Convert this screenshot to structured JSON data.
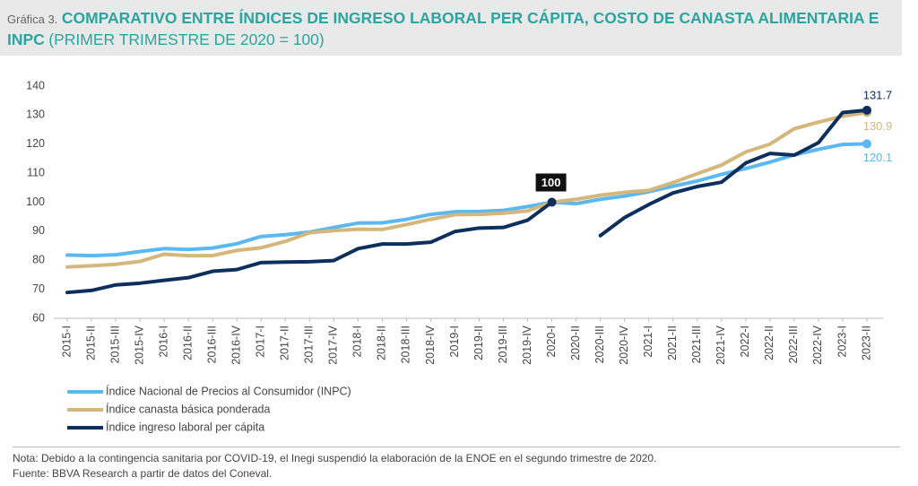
{
  "chart_data": {
    "type": "line",
    "label": "Gráfica 3.",
    "title": "COMPARATIVO ENTRE ÍNDICES DE INGRESO LABORAL PER CÁPITA, COSTO DE CANASTA ALIMENTARIA E INPC",
    "subtitle": "(PRIMER TRIMESTRE DE 2020 = 100)",
    "categories": [
      "2015-I",
      "2015-II",
      "2015-III",
      "2015-IV",
      "2016-I",
      "2016-II",
      "2016-III",
      "2016-IV",
      "2017-I",
      "2017-II",
      "2017-III",
      "2017-IV",
      "2018-I",
      "2018-II",
      "2018-III",
      "2018-IV",
      "2019-I",
      "2019-II",
      "2019-III",
      "2019-IV",
      "2020-I",
      "2020-II",
      "2020-III",
      "2020-IV",
      "2021-I",
      "2021-II",
      "2021-III",
      "2021-IV",
      "2022-I",
      "2022-II",
      "2022-III",
      "2022-IV",
      "2023-I",
      "2023-II"
    ],
    "series": [
      {
        "name": "Índice Nacional de Precios al Consumidor (INPC)",
        "color": "#5bb8f0",
        "values": [
          81.8,
          81.6,
          81.9,
          83,
          84,
          83.7,
          84.2,
          85.7,
          88.2,
          88.8,
          89.7,
          91.3,
          92.8,
          92.9,
          94.1,
          95.8,
          96.7,
          96.8,
          97.2,
          98.5,
          100,
          99.5,
          101,
          102.1,
          103.6,
          105.5,
          107.3,
          109.6,
          111.6,
          113.8,
          116.3,
          118.2,
          119.9,
          120.1
        ]
      },
      {
        "name": "Índice canasta básica ponderada",
        "color": "#d4b77a",
        "values": [
          77.7,
          78.1,
          78.6,
          79.6,
          82.1,
          81.6,
          81.6,
          83.4,
          84.3,
          86.5,
          89.5,
          90.2,
          90.7,
          90.6,
          92.3,
          94.1,
          95.7,
          95.8,
          96.2,
          97,
          100,
          101,
          102.4,
          103.4,
          104.1,
          106.8,
          109.8,
          112.8,
          117.3,
          120,
          125.3,
          127.6,
          129.6,
          130.9
        ]
      },
      {
        "name": "Índice ingreso laboral per cápita",
        "color": "#0d2f5c",
        "values": [
          68.9,
          69.6,
          71.5,
          72.1,
          73.1,
          74,
          76.2,
          76.8,
          79.2,
          79.4,
          79.5,
          79.9,
          84,
          85.6,
          85.6,
          86.2,
          89.9,
          91.1,
          91.3,
          93.8,
          100,
          null,
          88.5,
          94.7,
          99.2,
          103.2,
          105.4,
          106.9,
          113.5,
          116.8,
          116.2,
          120.5,
          130.9,
          131.7
        ]
      }
    ],
    "ylim": [
      60,
      140
    ],
    "yticks": [
      60,
      70,
      80,
      90,
      100,
      110,
      120,
      130,
      140
    ],
    "note": "Nota: Debido a la contingencia sanitaria por COVID-19, el Inegi suspendió la elaboración de la ENOE en el segundo trimestre de 2020.",
    "source": "Fuente: BBVA Research a partir de datos del Coneval."
  }
}
